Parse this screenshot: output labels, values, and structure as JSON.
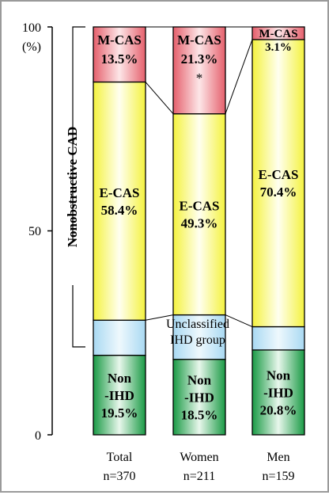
{
  "chart_data": {
    "type": "bar",
    "stacked": true,
    "ylim": [
      0,
      100
    ],
    "y_ticks": [
      "0",
      "50",
      "100"
    ],
    "y_unit": "(%)",
    "categories": [
      {
        "name": "Total",
        "n": "n=370"
      },
      {
        "name": "Women",
        "n": "n=211"
      },
      {
        "name": "Men",
        "n": "n=159"
      }
    ],
    "series": [
      {
        "key": "nonihd",
        "values": [
          19.5,
          18.5,
          20.8
        ],
        "labels": [
          [
            "Non",
            "-IHD",
            "19.5%"
          ],
          [
            "Non",
            "-IHD",
            "18.5%"
          ],
          [
            "Non",
            "-IHD",
            "20.8%"
          ]
        ],
        "color": "#1f9e4a"
      },
      {
        "key": "unclassified",
        "values": [
          8.6,
          10.9,
          5.7
        ],
        "labels": [
          [],
          [],
          []
        ],
        "color": "#bfe4f6"
      },
      {
        "key": "ecas",
        "values": [
          58.4,
          49.3,
          70.4
        ],
        "labels": [
          [
            "E-CAS",
            "58.4%"
          ],
          [
            "E-CAS",
            "49.3%"
          ],
          [
            "E-CAS",
            "70.4%"
          ]
        ],
        "color": "#f7f55a"
      },
      {
        "key": "mcas",
        "values": [
          13.5,
          21.3,
          3.1
        ],
        "labels": [
          [
            "M-CAS",
            "13.5%"
          ],
          [
            "M-CAS",
            "21.3%",
            "*"
          ],
          [
            "M-CAS",
            "3.1%"
          ]
        ],
        "color": "#e8707a"
      }
    ],
    "annotations": {
      "unclassified_label": [
        "Unclassified",
        "IHD group"
      ],
      "bracket_label": "Nonobstructive CAD"
    }
  }
}
